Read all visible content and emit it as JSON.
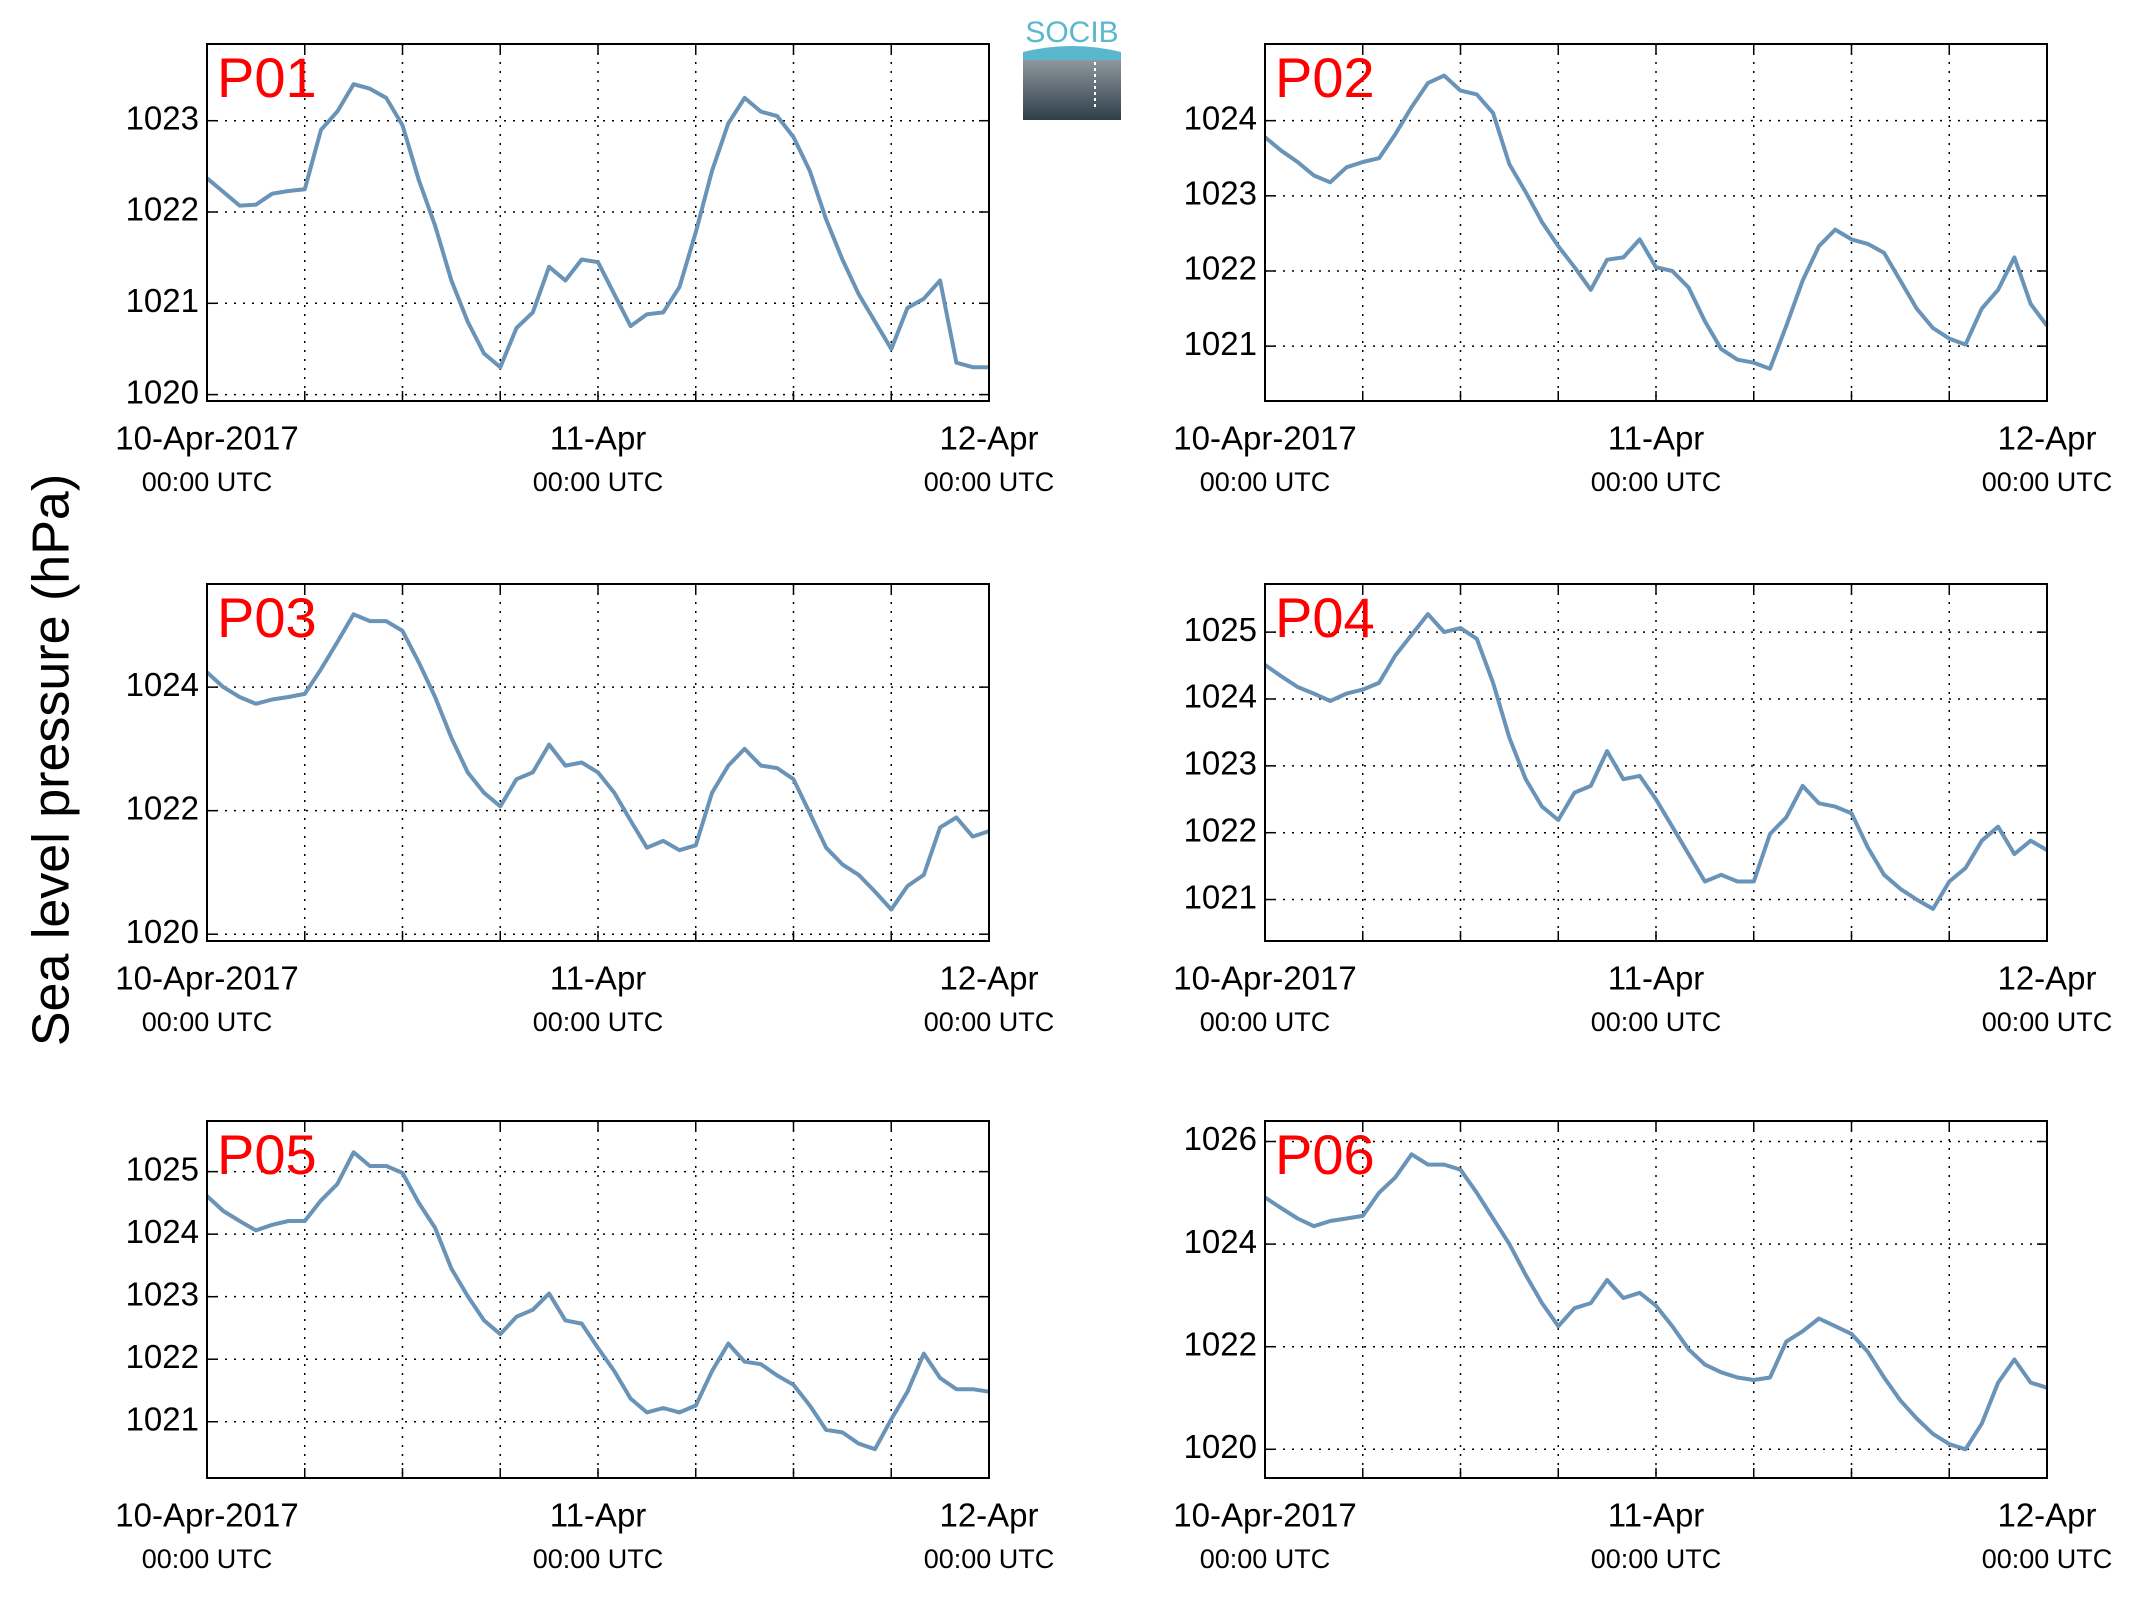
{
  "logo": "SOCIB",
  "ylabel": "Sea level pressure (hPa)",
  "chart_data": [
    {
      "type": "line",
      "title": "P01",
      "color": "#6a93b8",
      "x": [
        "2017-04-10T00:00",
        "2017-04-10T01:00",
        "2017-04-10T02:00",
        "2017-04-10T03:00",
        "2017-04-10T04:00",
        "2017-04-10T05:00",
        "2017-04-10T06:00",
        "2017-04-10T07:00",
        "2017-04-10T08:00",
        "2017-04-10T09:00",
        "2017-04-10T10:00",
        "2017-04-10T11:00",
        "2017-04-10T12:00",
        "2017-04-10T13:00",
        "2017-04-10T14:00",
        "2017-04-10T15:00",
        "2017-04-10T16:00",
        "2017-04-10T17:00",
        "2017-04-10T18:00",
        "2017-04-10T19:00",
        "2017-04-10T20:00",
        "2017-04-10T21:00",
        "2017-04-10T22:00",
        "2017-04-10T23:00",
        "2017-04-11T00:00",
        "2017-04-11T01:00",
        "2017-04-11T02:00",
        "2017-04-11T03:00",
        "2017-04-11T04:00",
        "2017-04-11T05:00",
        "2017-04-11T06:00",
        "2017-04-11T07:00",
        "2017-04-11T08:00",
        "2017-04-11T09:00",
        "2017-04-11T10:00",
        "2017-04-11T11:00",
        "2017-04-11T12:00",
        "2017-04-11T13:00",
        "2017-04-11T14:00",
        "2017-04-11T15:00",
        "2017-04-11T16:00",
        "2017-04-11T17:00",
        "2017-04-11T18:00",
        "2017-04-11T19:00",
        "2017-04-11T20:00",
        "2017-04-11T21:00",
        "2017-04-11T22:00",
        "2017-04-11T23:00",
        "2017-04-12T00:00"
      ],
      "values": [
        1022.37,
        1022.22,
        1022.07,
        1022.08,
        1022.2,
        1022.23,
        1022.25,
        1022.9,
        1023.1,
        1023.4,
        1023.35,
        1023.25,
        1022.95,
        1022.35,
        1021.85,
        1021.25,
        1020.8,
        1020.45,
        1020.3,
        1020.73,
        1020.9,
        1021.4,
        1021.25,
        1021.48,
        1021.45,
        1021.1,
        1020.75,
        1020.88,
        1020.9,
        1021.18,
        1021.78,
        1022.45,
        1022.97,
        1023.25,
        1023.1,
        1023.05,
        1022.82,
        1022.45,
        1021.92,
        1021.48,
        1021.1,
        1020.8,
        1020.5,
        1020.95,
        1021.05,
        1021.25,
        1020.35,
        1020.3,
        1020.3
      ],
      "xlim": [
        "2017-04-10T00:00",
        "2017-04-12T00:00"
      ],
      "xticks": [
        {
          "value": "2017-04-10T00:00",
          "label": "10-Apr-2017",
          "sublabel": "00:00 UTC"
        },
        {
          "value": "2017-04-10T06:00"
        },
        {
          "value": "2017-04-10T12:00"
        },
        {
          "value": "2017-04-10T18:00"
        },
        {
          "value": "2017-04-11T00:00",
          "label": "11-Apr",
          "sublabel": "00:00 UTC"
        },
        {
          "value": "2017-04-11T06:00"
        },
        {
          "value": "2017-04-11T12:00"
        },
        {
          "value": "2017-04-11T18:00"
        },
        {
          "value": "2017-04-12T00:00",
          "label": "12-Apr",
          "sublabel": "00:00 UTC"
        }
      ],
      "ylim": [
        1019.93,
        1023.84
      ],
      "yticks": [
        1020,
        1021,
        1022,
        1023
      ],
      "grid": true
    },
    {
      "type": "line",
      "title": "P02",
      "color": "#6a93b8",
      "x": [
        "2017-04-10T00:00",
        "2017-04-10T01:00",
        "2017-04-10T02:00",
        "2017-04-10T03:00",
        "2017-04-10T04:00",
        "2017-04-10T05:00",
        "2017-04-10T06:00",
        "2017-04-10T07:00",
        "2017-04-10T08:00",
        "2017-04-10T09:00",
        "2017-04-10T10:00",
        "2017-04-10T11:00",
        "2017-04-10T12:00",
        "2017-04-10T13:00",
        "2017-04-10T14:00",
        "2017-04-10T15:00",
        "2017-04-10T16:00",
        "2017-04-10T17:00",
        "2017-04-10T18:00",
        "2017-04-10T19:00",
        "2017-04-10T20:00",
        "2017-04-10T21:00",
        "2017-04-10T22:00",
        "2017-04-10T23:00",
        "2017-04-11T00:00",
        "2017-04-11T01:00",
        "2017-04-11T02:00",
        "2017-04-11T03:00",
        "2017-04-11T04:00",
        "2017-04-11T05:00",
        "2017-04-11T06:00",
        "2017-04-11T07:00",
        "2017-04-11T08:00",
        "2017-04-11T09:00",
        "2017-04-11T10:00",
        "2017-04-11T11:00",
        "2017-04-11T12:00",
        "2017-04-11T13:00",
        "2017-04-11T14:00",
        "2017-04-11T15:00",
        "2017-04-11T16:00",
        "2017-04-11T17:00",
        "2017-04-11T18:00",
        "2017-04-11T19:00",
        "2017-04-11T20:00",
        "2017-04-11T21:00",
        "2017-04-11T22:00",
        "2017-04-11T23:00",
        "2017-04-12T00:00"
      ],
      "values": [
        1023.78,
        1023.6,
        1023.45,
        1023.27,
        1023.18,
        1023.38,
        1023.45,
        1023.5,
        1023.82,
        1024.18,
        1024.5,
        1024.6,
        1024.4,
        1024.35,
        1024.1,
        1023.42,
        1023.05,
        1022.65,
        1022.33,
        1022.05,
        1021.75,
        1022.15,
        1022.18,
        1022.42,
        1022.05,
        1022.0,
        1021.78,
        1021.33,
        1020.96,
        1020.82,
        1020.78,
        1020.7,
        1021.27,
        1021.87,
        1022.33,
        1022.55,
        1022.42,
        1022.36,
        1022.24,
        1021.87,
        1021.5,
        1021.24,
        1021.1,
        1021.02,
        1021.5,
        1021.75,
        1022.18,
        1021.56,
        1021.27
      ],
      "xlim": [
        "2017-04-10T00:00",
        "2017-04-12T00:00"
      ],
      "xticks": [
        {
          "value": "2017-04-10T00:00",
          "label": "10-Apr-2017",
          "sublabel": "00:00 UTC"
        },
        {
          "value": "2017-04-10T06:00"
        },
        {
          "value": "2017-04-10T12:00"
        },
        {
          "value": "2017-04-10T18:00"
        },
        {
          "value": "2017-04-11T00:00",
          "label": "11-Apr",
          "sublabel": "00:00 UTC"
        },
        {
          "value": "2017-04-11T06:00"
        },
        {
          "value": "2017-04-11T12:00"
        },
        {
          "value": "2017-04-11T18:00"
        },
        {
          "value": "2017-04-12T00:00",
          "label": "12-Apr",
          "sublabel": "00:00 UTC"
        }
      ],
      "ylim": [
        1020.27,
        1025.02
      ],
      "yticks": [
        1021,
        1022,
        1023,
        1024
      ],
      "grid": true
    },
    {
      "type": "line",
      "title": "P03",
      "color": "#6a93b8",
      "x": [
        "2017-04-10T00:00",
        "2017-04-10T01:00",
        "2017-04-10T02:00",
        "2017-04-10T03:00",
        "2017-04-10T04:00",
        "2017-04-10T05:00",
        "2017-04-10T06:00",
        "2017-04-10T07:00",
        "2017-04-10T08:00",
        "2017-04-10T09:00",
        "2017-04-10T10:00",
        "2017-04-10T11:00",
        "2017-04-10T12:00",
        "2017-04-10T13:00",
        "2017-04-10T14:00",
        "2017-04-10T15:00",
        "2017-04-10T16:00",
        "2017-04-10T17:00",
        "2017-04-10T18:00",
        "2017-04-10T19:00",
        "2017-04-10T20:00",
        "2017-04-10T21:00",
        "2017-04-10T22:00",
        "2017-04-10T23:00",
        "2017-04-11T00:00",
        "2017-04-11T01:00",
        "2017-04-11T02:00",
        "2017-04-11T03:00",
        "2017-04-11T04:00",
        "2017-04-11T05:00",
        "2017-04-11T06:00",
        "2017-04-11T07:00",
        "2017-04-11T08:00",
        "2017-04-11T09:00",
        "2017-04-11T10:00",
        "2017-04-11T11:00",
        "2017-04-11T12:00",
        "2017-04-11T13:00",
        "2017-04-11T14:00",
        "2017-04-11T15:00",
        "2017-04-11T16:00",
        "2017-04-11T17:00",
        "2017-04-11T18:00",
        "2017-04-11T19:00",
        "2017-04-11T20:00",
        "2017-04-11T21:00",
        "2017-04-11T22:00",
        "2017-04-11T23:00",
        "2017-04-12T00:00"
      ],
      "values": [
        1024.24,
        1024.0,
        1023.84,
        1023.73,
        1023.8,
        1023.84,
        1023.89,
        1024.29,
        1024.73,
        1025.18,
        1025.07,
        1025.07,
        1024.91,
        1024.4,
        1023.84,
        1023.18,
        1022.62,
        1022.29,
        1022.07,
        1022.51,
        1022.62,
        1023.07,
        1022.73,
        1022.78,
        1022.62,
        1022.29,
        1021.84,
        1021.4,
        1021.51,
        1021.36,
        1021.44,
        1022.29,
        1022.73,
        1023.0,
        1022.73,
        1022.69,
        1022.51,
        1021.96,
        1021.4,
        1021.13,
        1020.96,
        1020.69,
        1020.4,
        1020.78,
        1020.96,
        1021.73,
        1021.89,
        1021.58,
        1021.67
      ],
      "xlim": [
        "2017-04-10T00:00",
        "2017-04-12T00:00"
      ],
      "xticks": [
        {
          "value": "2017-04-10T00:00",
          "label": "10-Apr-2017",
          "sublabel": "00:00 UTC"
        },
        {
          "value": "2017-04-10T06:00"
        },
        {
          "value": "2017-04-10T12:00"
        },
        {
          "value": "2017-04-10T18:00"
        },
        {
          "value": "2017-04-11T00:00",
          "label": "11-Apr",
          "sublabel": "00:00 UTC"
        },
        {
          "value": "2017-04-11T06:00"
        },
        {
          "value": "2017-04-11T12:00"
        },
        {
          "value": "2017-04-11T18:00"
        },
        {
          "value": "2017-04-12T00:00",
          "label": "12-Apr",
          "sublabel": "00:00 UTC"
        }
      ],
      "ylim": [
        1019.89,
        1025.67
      ],
      "yticks": [
        1020,
        1022,
        1024
      ],
      "grid": true
    },
    {
      "type": "line",
      "title": "P04",
      "color": "#6a93b8",
      "x": [
        "2017-04-10T00:00",
        "2017-04-10T01:00",
        "2017-04-10T02:00",
        "2017-04-10T03:00",
        "2017-04-10T04:00",
        "2017-04-10T05:00",
        "2017-04-10T06:00",
        "2017-04-10T07:00",
        "2017-04-10T08:00",
        "2017-04-10T09:00",
        "2017-04-10T10:00",
        "2017-04-10T11:00",
        "2017-04-10T12:00",
        "2017-04-10T13:00",
        "2017-04-10T14:00",
        "2017-04-10T15:00",
        "2017-04-10T16:00",
        "2017-04-10T17:00",
        "2017-04-10T18:00",
        "2017-04-10T19:00",
        "2017-04-10T20:00",
        "2017-04-10T21:00",
        "2017-04-10T22:00",
        "2017-04-10T23:00",
        "2017-04-11T00:00",
        "2017-04-11T01:00",
        "2017-04-11T02:00",
        "2017-04-11T03:00",
        "2017-04-11T04:00",
        "2017-04-11T05:00",
        "2017-04-11T06:00",
        "2017-04-11T07:00",
        "2017-04-11T08:00",
        "2017-04-11T09:00",
        "2017-04-11T10:00",
        "2017-04-11T11:00",
        "2017-04-11T12:00",
        "2017-04-11T13:00",
        "2017-04-11T14:00",
        "2017-04-11T15:00",
        "2017-04-11T16:00",
        "2017-04-11T17:00",
        "2017-04-11T18:00",
        "2017-04-11T19:00",
        "2017-04-11T20:00",
        "2017-04-11T21:00",
        "2017-04-11T22:00",
        "2017-04-11T23:00",
        "2017-04-12T00:00"
      ],
      "values": [
        1024.51,
        1024.34,
        1024.18,
        1024.08,
        1023.97,
        1024.08,
        1024.14,
        1024.24,
        1024.65,
        1024.96,
        1025.27,
        1025.0,
        1025.06,
        1024.9,
        1024.24,
        1023.42,
        1022.8,
        1022.39,
        1022.19,
        1022.6,
        1022.7,
        1023.22,
        1022.8,
        1022.85,
        1022.5,
        1022.09,
        1021.68,
        1021.27,
        1021.37,
        1021.27,
        1021.27,
        1021.98,
        1022.23,
        1022.7,
        1022.44,
        1022.39,
        1022.29,
        1021.78,
        1021.37,
        1021.16,
        1021.0,
        1020.86,
        1021.27,
        1021.47,
        1021.88,
        1022.09,
        1021.68,
        1021.88,
        1021.74
      ],
      "xlim": [
        "2017-04-10T00:00",
        "2017-04-12T00:00"
      ],
      "xticks": [
        {
          "value": "2017-04-10T00:00",
          "label": "10-Apr-2017",
          "sublabel": "00:00 UTC"
        },
        {
          "value": "2017-04-10T06:00"
        },
        {
          "value": "2017-04-10T12:00"
        },
        {
          "value": "2017-04-10T18:00"
        },
        {
          "value": "2017-04-11T00:00",
          "label": "11-Apr",
          "sublabel": "00:00 UTC"
        },
        {
          "value": "2017-04-11T06:00"
        },
        {
          "value": "2017-04-11T12:00"
        },
        {
          "value": "2017-04-11T18:00"
        },
        {
          "value": "2017-04-12T00:00",
          "label": "12-Apr",
          "sublabel": "00:00 UTC"
        }
      ],
      "ylim": [
        1020.38,
        1025.72
      ],
      "yticks": [
        1021,
        1022,
        1023,
        1024,
        1025
      ],
      "grid": true
    },
    {
      "type": "line",
      "title": "P05",
      "color": "#6a93b8",
      "x": [
        "2017-04-10T00:00",
        "2017-04-10T01:00",
        "2017-04-10T02:00",
        "2017-04-10T03:00",
        "2017-04-10T04:00",
        "2017-04-10T05:00",
        "2017-04-10T06:00",
        "2017-04-10T07:00",
        "2017-04-10T08:00",
        "2017-04-10T09:00",
        "2017-04-10T10:00",
        "2017-04-10T11:00",
        "2017-04-10T12:00",
        "2017-04-10T13:00",
        "2017-04-10T14:00",
        "2017-04-10T15:00",
        "2017-04-10T16:00",
        "2017-04-10T17:00",
        "2017-04-10T18:00",
        "2017-04-10T19:00",
        "2017-04-10T20:00",
        "2017-04-10T21:00",
        "2017-04-10T22:00",
        "2017-04-10T23:00",
        "2017-04-11T00:00",
        "2017-04-11T01:00",
        "2017-04-11T02:00",
        "2017-04-11T03:00",
        "2017-04-11T04:00",
        "2017-04-11T05:00",
        "2017-04-11T06:00",
        "2017-04-11T07:00",
        "2017-04-11T08:00",
        "2017-04-11T09:00",
        "2017-04-11T10:00",
        "2017-04-11T11:00",
        "2017-04-11T12:00",
        "2017-04-11T13:00",
        "2017-04-11T14:00",
        "2017-04-11T15:00",
        "2017-04-11T16:00",
        "2017-04-11T17:00",
        "2017-04-11T18:00",
        "2017-04-11T19:00",
        "2017-04-11T20:00",
        "2017-04-11T21:00",
        "2017-04-11T22:00",
        "2017-04-11T23:00",
        "2017-04-12T00:00"
      ],
      "values": [
        1024.61,
        1024.37,
        1024.21,
        1024.06,
        1024.15,
        1024.21,
        1024.21,
        1024.54,
        1024.8,
        1025.31,
        1025.09,
        1025.09,
        1024.98,
        1024.5,
        1024.1,
        1023.45,
        1023.01,
        1022.62,
        1022.4,
        1022.68,
        1022.79,
        1023.05,
        1022.62,
        1022.57,
        1022.18,
        1021.81,
        1021.37,
        1021.15,
        1021.22,
        1021.15,
        1021.26,
        1021.81,
        1022.25,
        1021.96,
        1021.92,
        1021.74,
        1021.59,
        1021.26,
        1020.87,
        1020.83,
        1020.65,
        1020.56,
        1021.04,
        1021.48,
        1022.09,
        1021.7,
        1021.52,
        1021.52,
        1021.48
      ],
      "xlim": [
        "2017-04-10T00:00",
        "2017-04-12T00:00"
      ],
      "xticks": [
        {
          "value": "2017-04-10T00:00",
          "label": "10-Apr-2017",
          "sublabel": "00:00 UTC"
        },
        {
          "value": "2017-04-10T06:00"
        },
        {
          "value": "2017-04-10T12:00"
        },
        {
          "value": "2017-04-10T18:00"
        },
        {
          "value": "2017-04-11T00:00",
          "label": "11-Apr",
          "sublabel": "00:00 UTC"
        },
        {
          "value": "2017-04-11T06:00"
        },
        {
          "value": "2017-04-11T12:00"
        },
        {
          "value": "2017-04-11T18:00"
        },
        {
          "value": "2017-04-12T00:00",
          "label": "12-Apr",
          "sublabel": "00:00 UTC"
        }
      ],
      "ylim": [
        1020.1,
        1025.81
      ],
      "yticks": [
        1021,
        1022,
        1023,
        1024,
        1025
      ],
      "grid": true
    },
    {
      "type": "line",
      "title": "P06",
      "color": "#6a93b8",
      "x": [
        "2017-04-10T00:00",
        "2017-04-10T01:00",
        "2017-04-10T02:00",
        "2017-04-10T03:00",
        "2017-04-10T04:00",
        "2017-04-10T05:00",
        "2017-04-10T06:00",
        "2017-04-10T07:00",
        "2017-04-10T08:00",
        "2017-04-10T09:00",
        "2017-04-10T10:00",
        "2017-04-10T11:00",
        "2017-04-10T12:00",
        "2017-04-10T13:00",
        "2017-04-10T14:00",
        "2017-04-10T15:00",
        "2017-04-10T16:00",
        "2017-04-10T17:00",
        "2017-04-10T18:00",
        "2017-04-10T19:00",
        "2017-04-10T20:00",
        "2017-04-10T21:00",
        "2017-04-10T22:00",
        "2017-04-10T23:00",
        "2017-04-11T00:00",
        "2017-04-11T01:00",
        "2017-04-11T02:00",
        "2017-04-11T03:00",
        "2017-04-11T04:00",
        "2017-04-11T05:00",
        "2017-04-11T06:00",
        "2017-04-11T07:00",
        "2017-04-11T08:00",
        "2017-04-11T09:00",
        "2017-04-11T10:00",
        "2017-04-11T11:00",
        "2017-04-11T12:00",
        "2017-04-11T13:00",
        "2017-04-11T14:00",
        "2017-04-11T15:00",
        "2017-04-11T16:00",
        "2017-04-11T17:00",
        "2017-04-11T18:00",
        "2017-04-11T19:00",
        "2017-04-11T20:00",
        "2017-04-11T21:00",
        "2017-04-11T22:00",
        "2017-04-11T23:00",
        "2017-04-12T00:00"
      ],
      "values": [
        1024.91,
        1024.7,
        1024.5,
        1024.35,
        1024.45,
        1024.5,
        1024.55,
        1025.0,
        1025.3,
        1025.75,
        1025.55,
        1025.55,
        1025.45,
        1025.0,
        1024.5,
        1024.0,
        1023.4,
        1022.85,
        1022.4,
        1022.75,
        1022.85,
        1023.3,
        1022.95,
        1023.05,
        1022.8,
        1022.4,
        1021.95,
        1021.65,
        1021.5,
        1021.4,
        1021.35,
        1021.4,
        1022.1,
        1022.3,
        1022.55,
        1022.4,
        1022.25,
        1021.9,
        1021.4,
        1020.95,
        1020.6,
        1020.3,
        1020.1,
        1020.0,
        1020.5,
        1021.3,
        1021.75,
        1021.3,
        1021.2
      ],
      "xlim": [
        "2017-04-10T00:00",
        "2017-04-12T00:00"
      ],
      "xticks": [
        {
          "value": "2017-04-10T00:00",
          "label": "10-Apr-2017",
          "sublabel": "00:00 UTC"
        },
        {
          "value": "2017-04-10T06:00"
        },
        {
          "value": "2017-04-10T12:00"
        },
        {
          "value": "2017-04-10T18:00"
        },
        {
          "value": "2017-04-11T00:00",
          "label": "11-Apr",
          "sublabel": "00:00 UTC"
        },
        {
          "value": "2017-04-11T06:00"
        },
        {
          "value": "2017-04-11T12:00"
        },
        {
          "value": "2017-04-11T18:00"
        },
        {
          "value": "2017-04-12T00:00",
          "label": "12-Apr",
          "sublabel": "00:00 UTC"
        }
      ],
      "ylim": [
        1019.44,
        1026.4
      ],
      "yticks": [
        1020,
        1022,
        1024,
        1026
      ],
      "grid": true
    }
  ]
}
